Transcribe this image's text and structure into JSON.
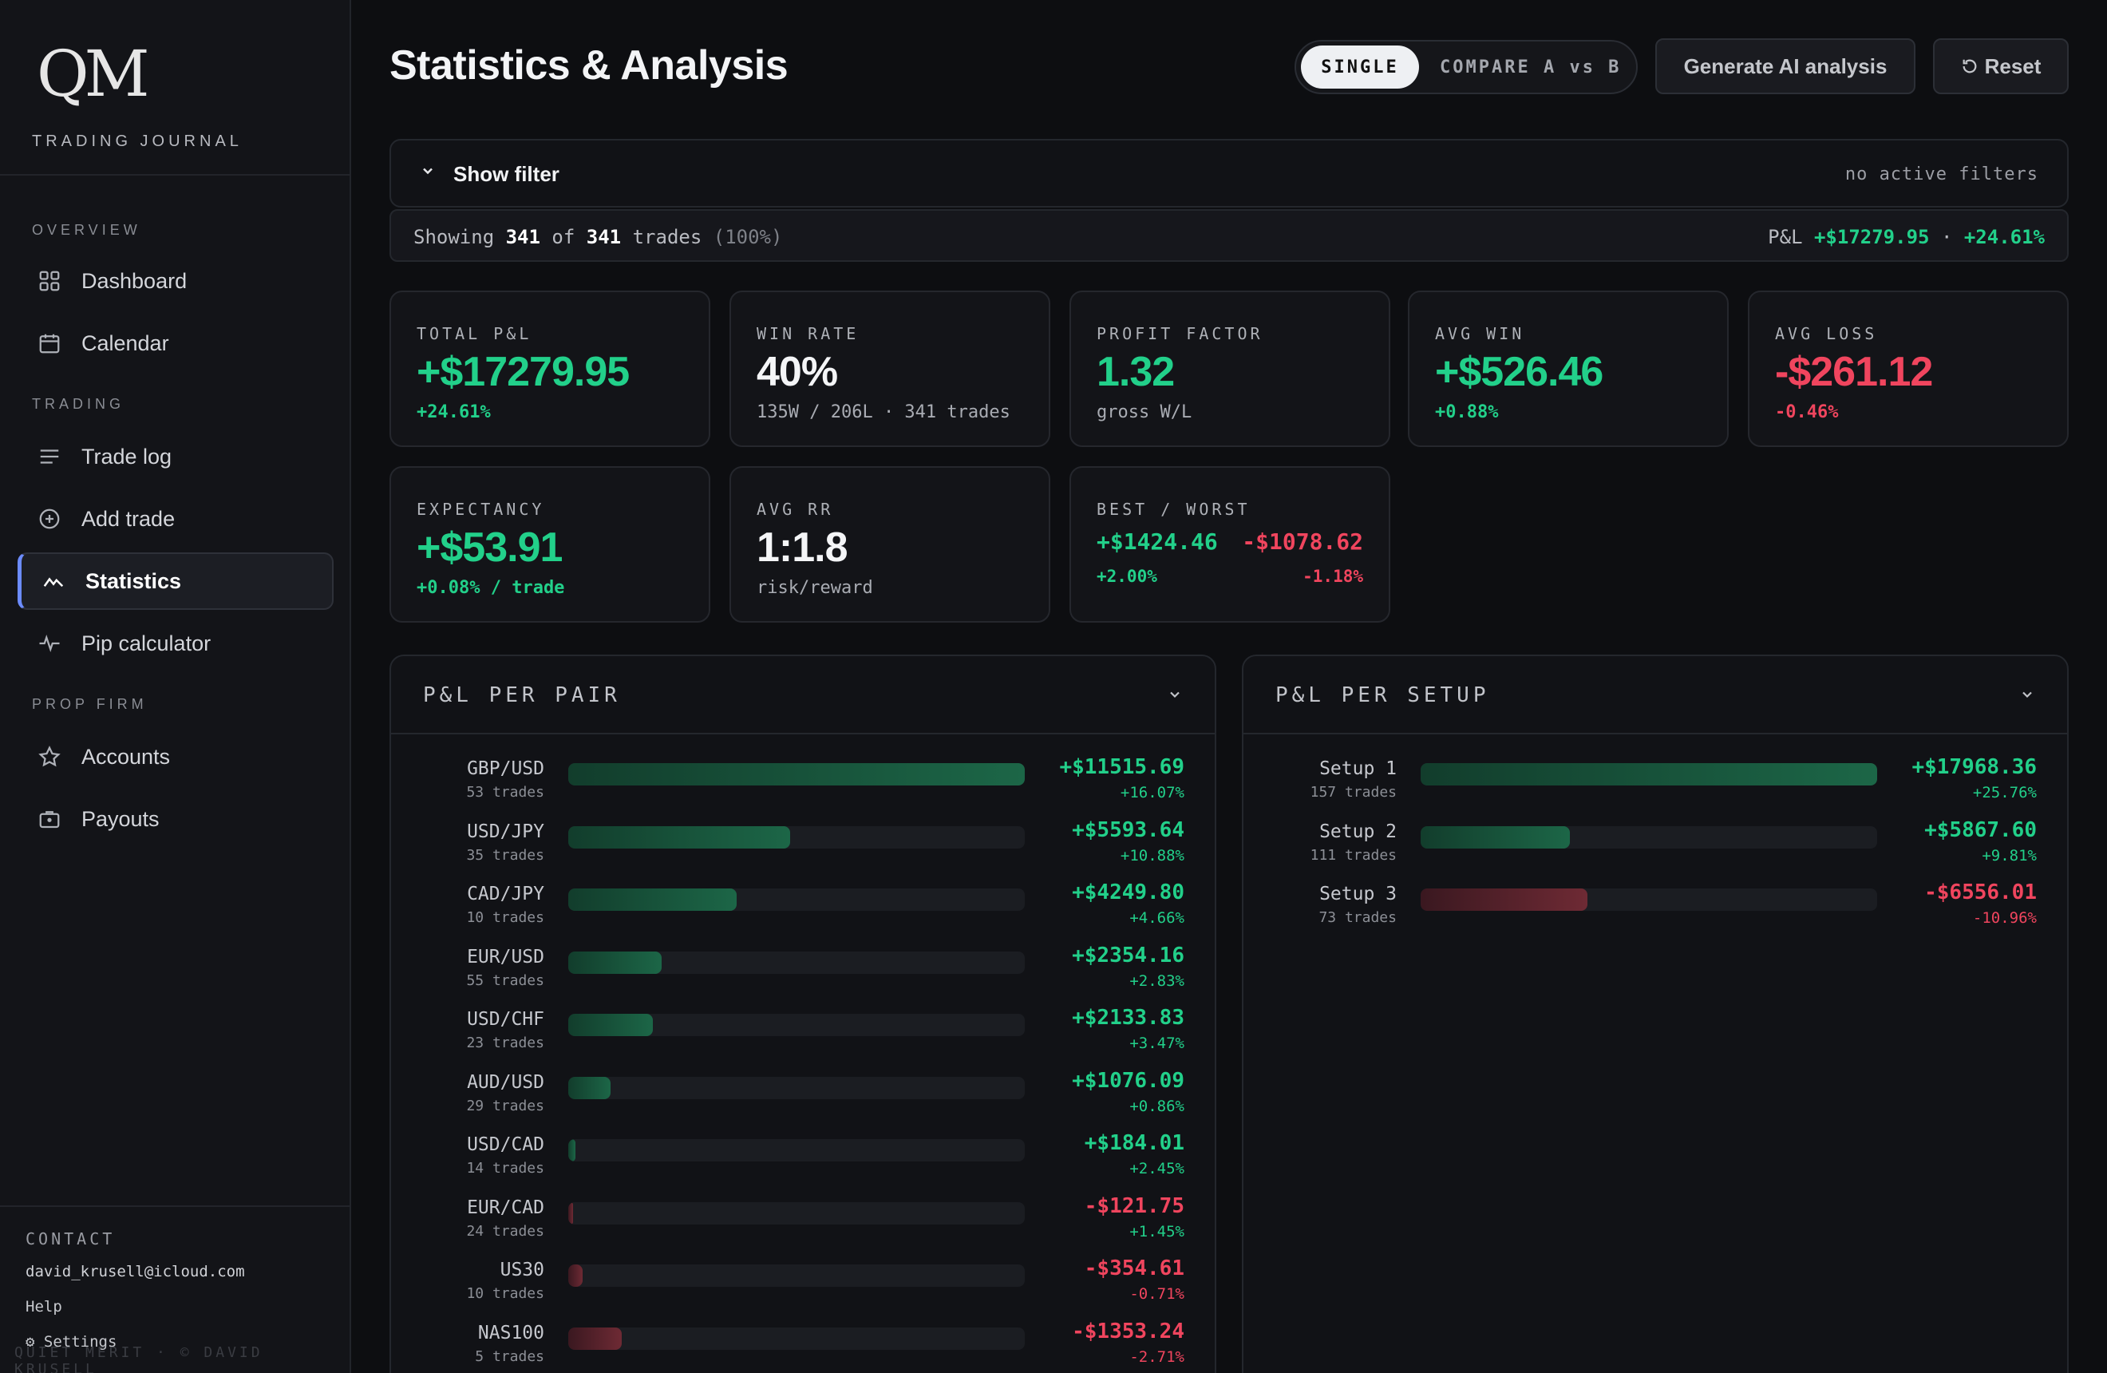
{
  "brand": {
    "logo": "QM",
    "subtitle": "TRADING JOURNAL"
  },
  "sidebar": {
    "sections": {
      "overview": "OVERVIEW",
      "trading": "TRADING",
      "prop_firm": "PROP FIRM"
    },
    "items": [
      {
        "label": "Dashboard",
        "icon": "grid-icon"
      },
      {
        "label": "Calendar",
        "icon": "calendar-icon"
      },
      {
        "label": "Trade log",
        "icon": "list-icon"
      },
      {
        "label": "Add trade",
        "icon": "plus-circle-icon"
      },
      {
        "label": "Statistics",
        "icon": "chart-line-icon",
        "active": true
      },
      {
        "label": "Pip calculator",
        "icon": "pulse-icon"
      },
      {
        "label": "Accounts",
        "icon": "star-icon"
      },
      {
        "label": "Payouts",
        "icon": "briefcase-icon"
      }
    ],
    "contact": {
      "heading": "CONTACT",
      "email": "david_krusell@icloud.com",
      "help": "Help",
      "settings": "⚙ Settings"
    },
    "footer": "QUIET MERIT · © DAVID KRUSELL"
  },
  "header": {
    "title": "Statistics & Analysis",
    "mode_single": "SINGLE",
    "mode_compare": "COMPARE A vs B",
    "ai_button": "Generate AI analysis",
    "reset_button": "Reset"
  },
  "filter": {
    "label": "Show filter",
    "status": "no active filters"
  },
  "showing": {
    "prefix": "Showing",
    "count": "341",
    "of": "of",
    "total": "341",
    "suffix": "trades",
    "pct": "(100%)",
    "pnl_label": "P&L",
    "pnl_value": "+$17279.95",
    "pnl_sep": "·",
    "pnl_pct": "+24.61%"
  },
  "cards": {
    "total_pnl": {
      "label": "TOTAL P&L",
      "value": "+$17279.95",
      "sub": "+24.61%"
    },
    "win_rate": {
      "label": "WIN RATE",
      "value": "40%",
      "sub": "135W / 206L · 341 trades"
    },
    "profit_factor": {
      "label": "PROFIT FACTOR",
      "value": "1.32",
      "sub": "gross W/L"
    },
    "avg_win": {
      "label": "AVG WIN",
      "value": "+$526.46",
      "sub": "+0.88%"
    },
    "avg_loss": {
      "label": "AVG LOSS",
      "value": "-$261.12",
      "sub": "-0.46%"
    },
    "expectancy": {
      "label": "EXPECTANCY",
      "value": "+$53.91",
      "sub": "+0.08% / trade"
    },
    "avg_rr": {
      "label": "AVG RR",
      "value": "1:1.8",
      "sub": "risk/reward"
    },
    "best_worst": {
      "label": "BEST / WORST",
      "best": "+$1424.46",
      "worst": "-$1078.62",
      "best_pct": "+2.00%",
      "worst_pct": "-1.18%"
    }
  },
  "colors": {
    "positive": "#22d08a",
    "negative": "#f0455e",
    "accent": "#6c8cff"
  },
  "pnl_per_pair": {
    "title": "P&L PER PAIR",
    "rows": [
      {
        "name": "GBP/USD",
        "trades": "53 trades",
        "amount": "+$11515.69",
        "pct": "+16.07%",
        "value": 11515.69
      },
      {
        "name": "USD/JPY",
        "trades": "35 trades",
        "amount": "+$5593.64",
        "pct": "+10.88%",
        "value": 5593.64
      },
      {
        "name": "CAD/JPY",
        "trades": "10 trades",
        "amount": "+$4249.80",
        "pct": "+4.66%",
        "value": 4249.8
      },
      {
        "name": "EUR/USD",
        "trades": "55 trades",
        "amount": "+$2354.16",
        "pct": "+2.83%",
        "value": 2354.16
      },
      {
        "name": "USD/CHF",
        "trades": "23 trades",
        "amount": "+$2133.83",
        "pct": "+3.47%",
        "value": 2133.83
      },
      {
        "name": "AUD/USD",
        "trades": "29 trades",
        "amount": "+$1076.09",
        "pct": "+0.86%",
        "value": 1076.09
      },
      {
        "name": "USD/CAD",
        "trades": "14 trades",
        "amount": "+$184.01",
        "pct": "+2.45%",
        "value": 184.01
      },
      {
        "name": "EUR/CAD",
        "trades": "24 trades",
        "amount": "-$121.75",
        "pct": "+1.45%",
        "value": -121.75
      },
      {
        "name": "US30",
        "trades": "10 trades",
        "amount": "-$354.61",
        "pct": "-0.71%",
        "value": -354.61
      },
      {
        "name": "NAS100",
        "trades": "5 trades",
        "amount": "-$1353.24",
        "pct": "-2.71%",
        "value": -1353.24
      }
    ]
  },
  "pnl_per_setup": {
    "title": "P&L PER SETUP",
    "rows": [
      {
        "name": "Setup 1",
        "trades": "157 trades",
        "amount": "+$17968.36",
        "pct": "+25.76%",
        "value": 17968.36
      },
      {
        "name": "Setup 2",
        "trades": "111 trades",
        "amount": "+$5867.60",
        "pct": "+9.81%",
        "value": 5867.6
      },
      {
        "name": "Setup 3",
        "trades": "73 trades",
        "amount": "-$6556.01",
        "pct": "-10.96%",
        "value": -6556.01
      }
    ]
  }
}
